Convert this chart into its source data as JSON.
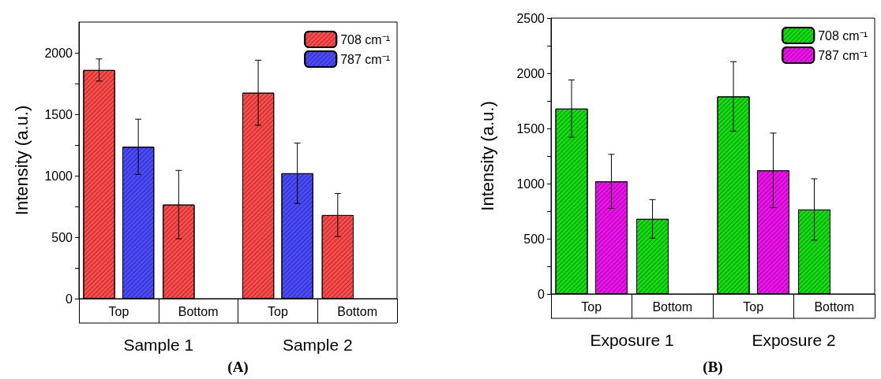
{
  "chart_data": [
    {
      "type": "bar",
      "title": "(A)",
      "ylabel": "Intensity (a.u.)",
      "categories": [
        "Top",
        "Bottom",
        "Top",
        "Bottom"
      ],
      "series": [
        {
          "name": "708 cm⁻¹",
          "color": "#ff4a4a",
          "values": [
            1860,
            765,
            1675,
            680
          ],
          "errors": [
            90,
            278,
            265,
            175
          ]
        },
        {
          "name": "787 cm⁻¹",
          "color": "#4a4aff",
          "values": [
            1235,
            null,
            1020,
            null
          ],
          "errors": [
            225,
            null,
            245,
            null
          ]
        }
      ],
      "ylim": [
        0,
        2250
      ],
      "yticks": [
        0,
        {
          "value": 250,
          "label": null
        },
        500,
        {
          "value": 750,
          "label": null
        },
        1000,
        {
          "value": 1250,
          "label": null
        },
        1500,
        {
          "value": 1750,
          "label": null
        },
        2000
      ],
      "legend": "top right",
      "annotations": [
        "Sample 1",
        "Sample 2"
      ]
    },
    {
      "type": "bar",
      "title": "(B)",
      "ylabel": "Intensity (a.u.)",
      "categories": [
        "Top",
        "Bottom",
        "Top",
        "Bottom"
      ],
      "series": [
        {
          "name": "708 cm⁻¹",
          "color": "#11dd11",
          "values": [
            1680,
            680,
            1790,
            765
          ],
          "errors": [
            260,
            175,
            315,
            278
          ]
        },
        {
          "name": "787 cm⁻¹",
          "color": "#ee11ee",
          "values": [
            1020,
            null,
            1120,
            null
          ],
          "errors": [
            245,
            null,
            338,
            null
          ]
        }
      ],
      "ylim": [
        0,
        2500
      ],
      "yticks": [
        0,
        {
          "value": 250,
          "label": null
        },
        500,
        {
          "value": 750,
          "label": null
        },
        1000,
        {
          "value": 1250,
          "label": null
        },
        1500,
        {
          "value": 1750,
          "label": null
        },
        2000,
        {
          "value": 2250,
          "label": null
        },
        2500
      ],
      "legend": "top right",
      "annotations": [
        "Exposure 1",
        "Exposure 2"
      ]
    }
  ]
}
